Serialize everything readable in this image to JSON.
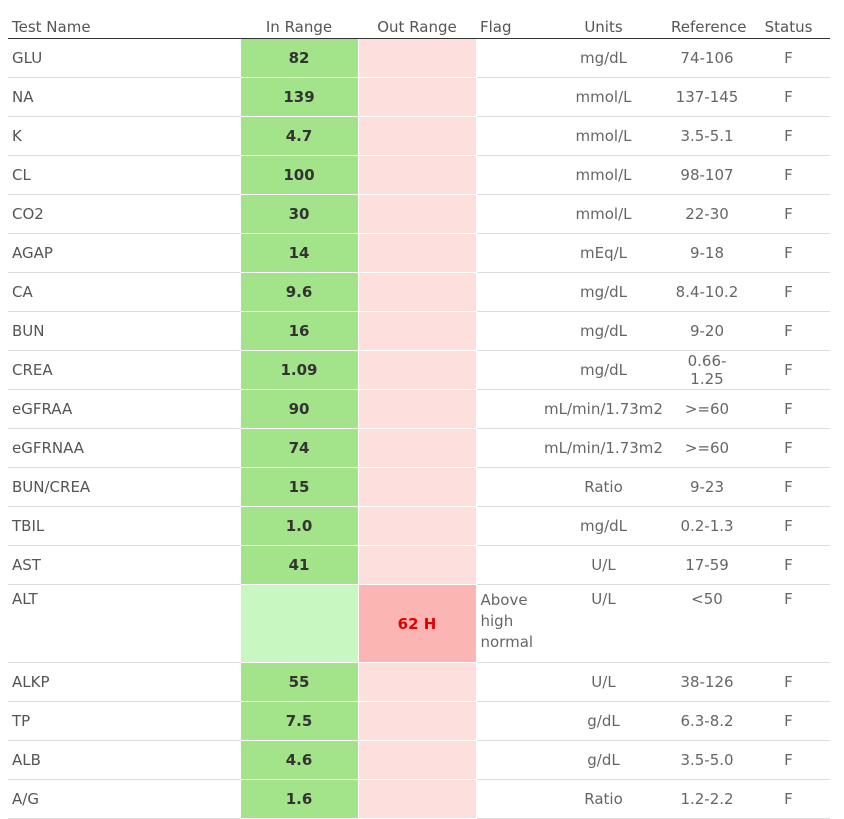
{
  "headers": {
    "test_name": "Test Name",
    "in_range": "In Range",
    "out_range": "Out Range",
    "flag": "Flag",
    "units": "Units",
    "reference": "Reference",
    "status": "Status"
  },
  "colors": {
    "in_range_fill": "#a3e38a",
    "in_range_empty_fill": "#c9f7c1",
    "out_range_fill": "#fde0de",
    "out_range_flagged_fill": "#fbb5b2",
    "out_range_flagged_text": "#e00000"
  },
  "rows": [
    {
      "name": "GLU",
      "in": "82",
      "out": "",
      "flag": "",
      "units": "mg/dL",
      "ref": "74-106",
      "status": "F"
    },
    {
      "name": "NA",
      "in": "139",
      "out": "",
      "flag": "",
      "units": "mmol/L",
      "ref": "137-145",
      "status": "F"
    },
    {
      "name": "K",
      "in": "4.7",
      "out": "",
      "flag": "",
      "units": "mmol/L",
      "ref": "3.5-5.1",
      "status": "F"
    },
    {
      "name": "CL",
      "in": "100",
      "out": "",
      "flag": "",
      "units": "mmol/L",
      "ref": "98-107",
      "status": "F"
    },
    {
      "name": "CO2",
      "in": "30",
      "out": "",
      "flag": "",
      "units": "mmol/L",
      "ref": "22-30",
      "status": "F"
    },
    {
      "name": "AGAP",
      "in": "14",
      "out": "",
      "flag": "",
      "units": "mEq/L",
      "ref": "9-18",
      "status": "F"
    },
    {
      "name": "CA",
      "in": "9.6",
      "out": "",
      "flag": "",
      "units": "mg/dL",
      "ref": "8.4-10.2",
      "status": "F"
    },
    {
      "name": "BUN",
      "in": "16",
      "out": "",
      "flag": "",
      "units": "mg/dL",
      "ref": "9-20",
      "status": "F"
    },
    {
      "name": "CREA",
      "in": "1.09",
      "out": "",
      "flag": "",
      "units": "mg/dL",
      "ref": "0.66-1.25",
      "status": "F"
    },
    {
      "name": "eGFRAA",
      "in": "90",
      "out": "",
      "flag": "",
      "units": "mL/min/1.73m2",
      "ref": ">=60",
      "status": "F"
    },
    {
      "name": "eGFRNAA",
      "in": "74",
      "out": "",
      "flag": "",
      "units": "mL/min/1.73m2",
      "ref": ">=60",
      "status": "F"
    },
    {
      "name": "BUN/CREA",
      "in": "15",
      "out": "",
      "flag": "",
      "units": "Ratio",
      "ref": "9-23",
      "status": "F"
    },
    {
      "name": "TBIL",
      "in": "1.0",
      "out": "",
      "flag": "",
      "units": "mg/dL",
      "ref": "0.2-1.3",
      "status": "F"
    },
    {
      "name": "AST",
      "in": "41",
      "out": "",
      "flag": "",
      "units": "U/L",
      "ref": "17-59",
      "status": "F"
    },
    {
      "name": "ALT",
      "in": "",
      "out": "62 H",
      "flag": "Above high normal",
      "units": "U/L",
      "ref": "<50",
      "status": "F"
    },
    {
      "name": "ALKP",
      "in": "55",
      "out": "",
      "flag": "",
      "units": "U/L",
      "ref": "38-126",
      "status": "F"
    },
    {
      "name": "TP",
      "in": "7.5",
      "out": "",
      "flag": "",
      "units": "g/dL",
      "ref": "6.3-8.2",
      "status": "F"
    },
    {
      "name": "ALB",
      "in": "4.6",
      "out": "",
      "flag": "",
      "units": "g/dL",
      "ref": "3.5-5.0",
      "status": "F"
    },
    {
      "name": "A/G",
      "in": "1.6",
      "out": "",
      "flag": "",
      "units": "Ratio",
      "ref": "1.2-2.2",
      "status": "F"
    }
  ]
}
